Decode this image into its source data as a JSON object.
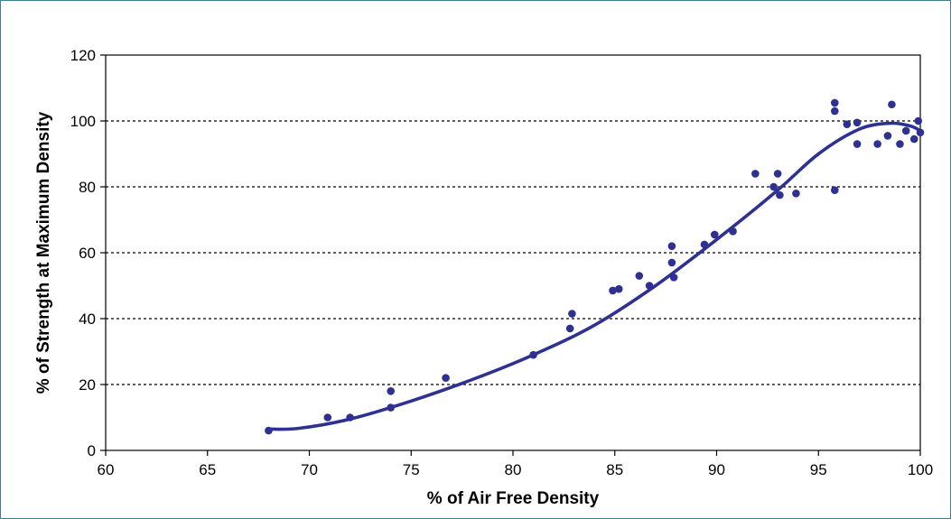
{
  "chart_data": {
    "type": "scatter",
    "title": "",
    "xlabel": "% of Air Free Density",
    "ylabel": "% of Strength at Maximum Density",
    "xlim": [
      60,
      100
    ],
    "ylim": [
      0,
      120
    ],
    "x_ticks": [
      60,
      65,
      70,
      75,
      80,
      85,
      90,
      95,
      100
    ],
    "y_ticks": [
      0,
      20,
      40,
      60,
      80,
      100,
      120
    ],
    "grid": "horizontal dashed lines at 20, 40, 60, 80, 100",
    "legend": "none",
    "colors": {
      "points": "#2e3192",
      "curve": "#2e3192",
      "border": "#3e7f93",
      "grid": "#000000"
    },
    "series": [
      {
        "type": "scatter",
        "points": [
          [
            68.0,
            6
          ],
          [
            70.9,
            10
          ],
          [
            72.0,
            10
          ],
          [
            74.0,
            18
          ],
          [
            74.0,
            13
          ],
          [
            76.7,
            22
          ],
          [
            81.0,
            29
          ],
          [
            82.8,
            37
          ],
          [
            82.9,
            41.5
          ],
          [
            84.9,
            48.5
          ],
          [
            85.2,
            49
          ],
          [
            86.2,
            53
          ],
          [
            86.7,
            50
          ],
          [
            87.8,
            62
          ],
          [
            87.8,
            57
          ],
          [
            87.9,
            52.5
          ],
          [
            89.4,
            62.5
          ],
          [
            89.9,
            65.5
          ],
          [
            90.8,
            66.5
          ],
          [
            91.9,
            84
          ],
          [
            92.8,
            80
          ],
          [
            93.0,
            84
          ],
          [
            93.1,
            77.5
          ],
          [
            93.9,
            78
          ],
          [
            95.8,
            105.5
          ],
          [
            95.8,
            103
          ],
          [
            95.8,
            79
          ],
          [
            96.4,
            99
          ],
          [
            96.9,
            99.5
          ],
          [
            96.9,
            93
          ],
          [
            97.9,
            93
          ],
          [
            98.4,
            95.5
          ],
          [
            98.6,
            105
          ],
          [
            99.0,
            93
          ],
          [
            99.3,
            97
          ],
          [
            99.7,
            94.5
          ],
          [
            99.9,
            100
          ],
          [
            100.0,
            96.5
          ]
        ]
      },
      {
        "type": "line",
        "smooth": true,
        "points": [
          [
            68.0,
            6.5
          ],
          [
            69.5,
            6.7
          ],
          [
            72,
            9.5
          ],
          [
            75,
            15
          ],
          [
            78,
            21.5
          ],
          [
            81,
            29
          ],
          [
            84,
            38
          ],
          [
            87,
            50
          ],
          [
            90,
            64
          ],
          [
            93,
            79
          ],
          [
            95,
            90
          ],
          [
            97,
            97.5
          ],
          [
            98.5,
            99.3
          ],
          [
            99.5,
            98.5
          ],
          [
            100,
            97
          ]
        ]
      }
    ]
  }
}
